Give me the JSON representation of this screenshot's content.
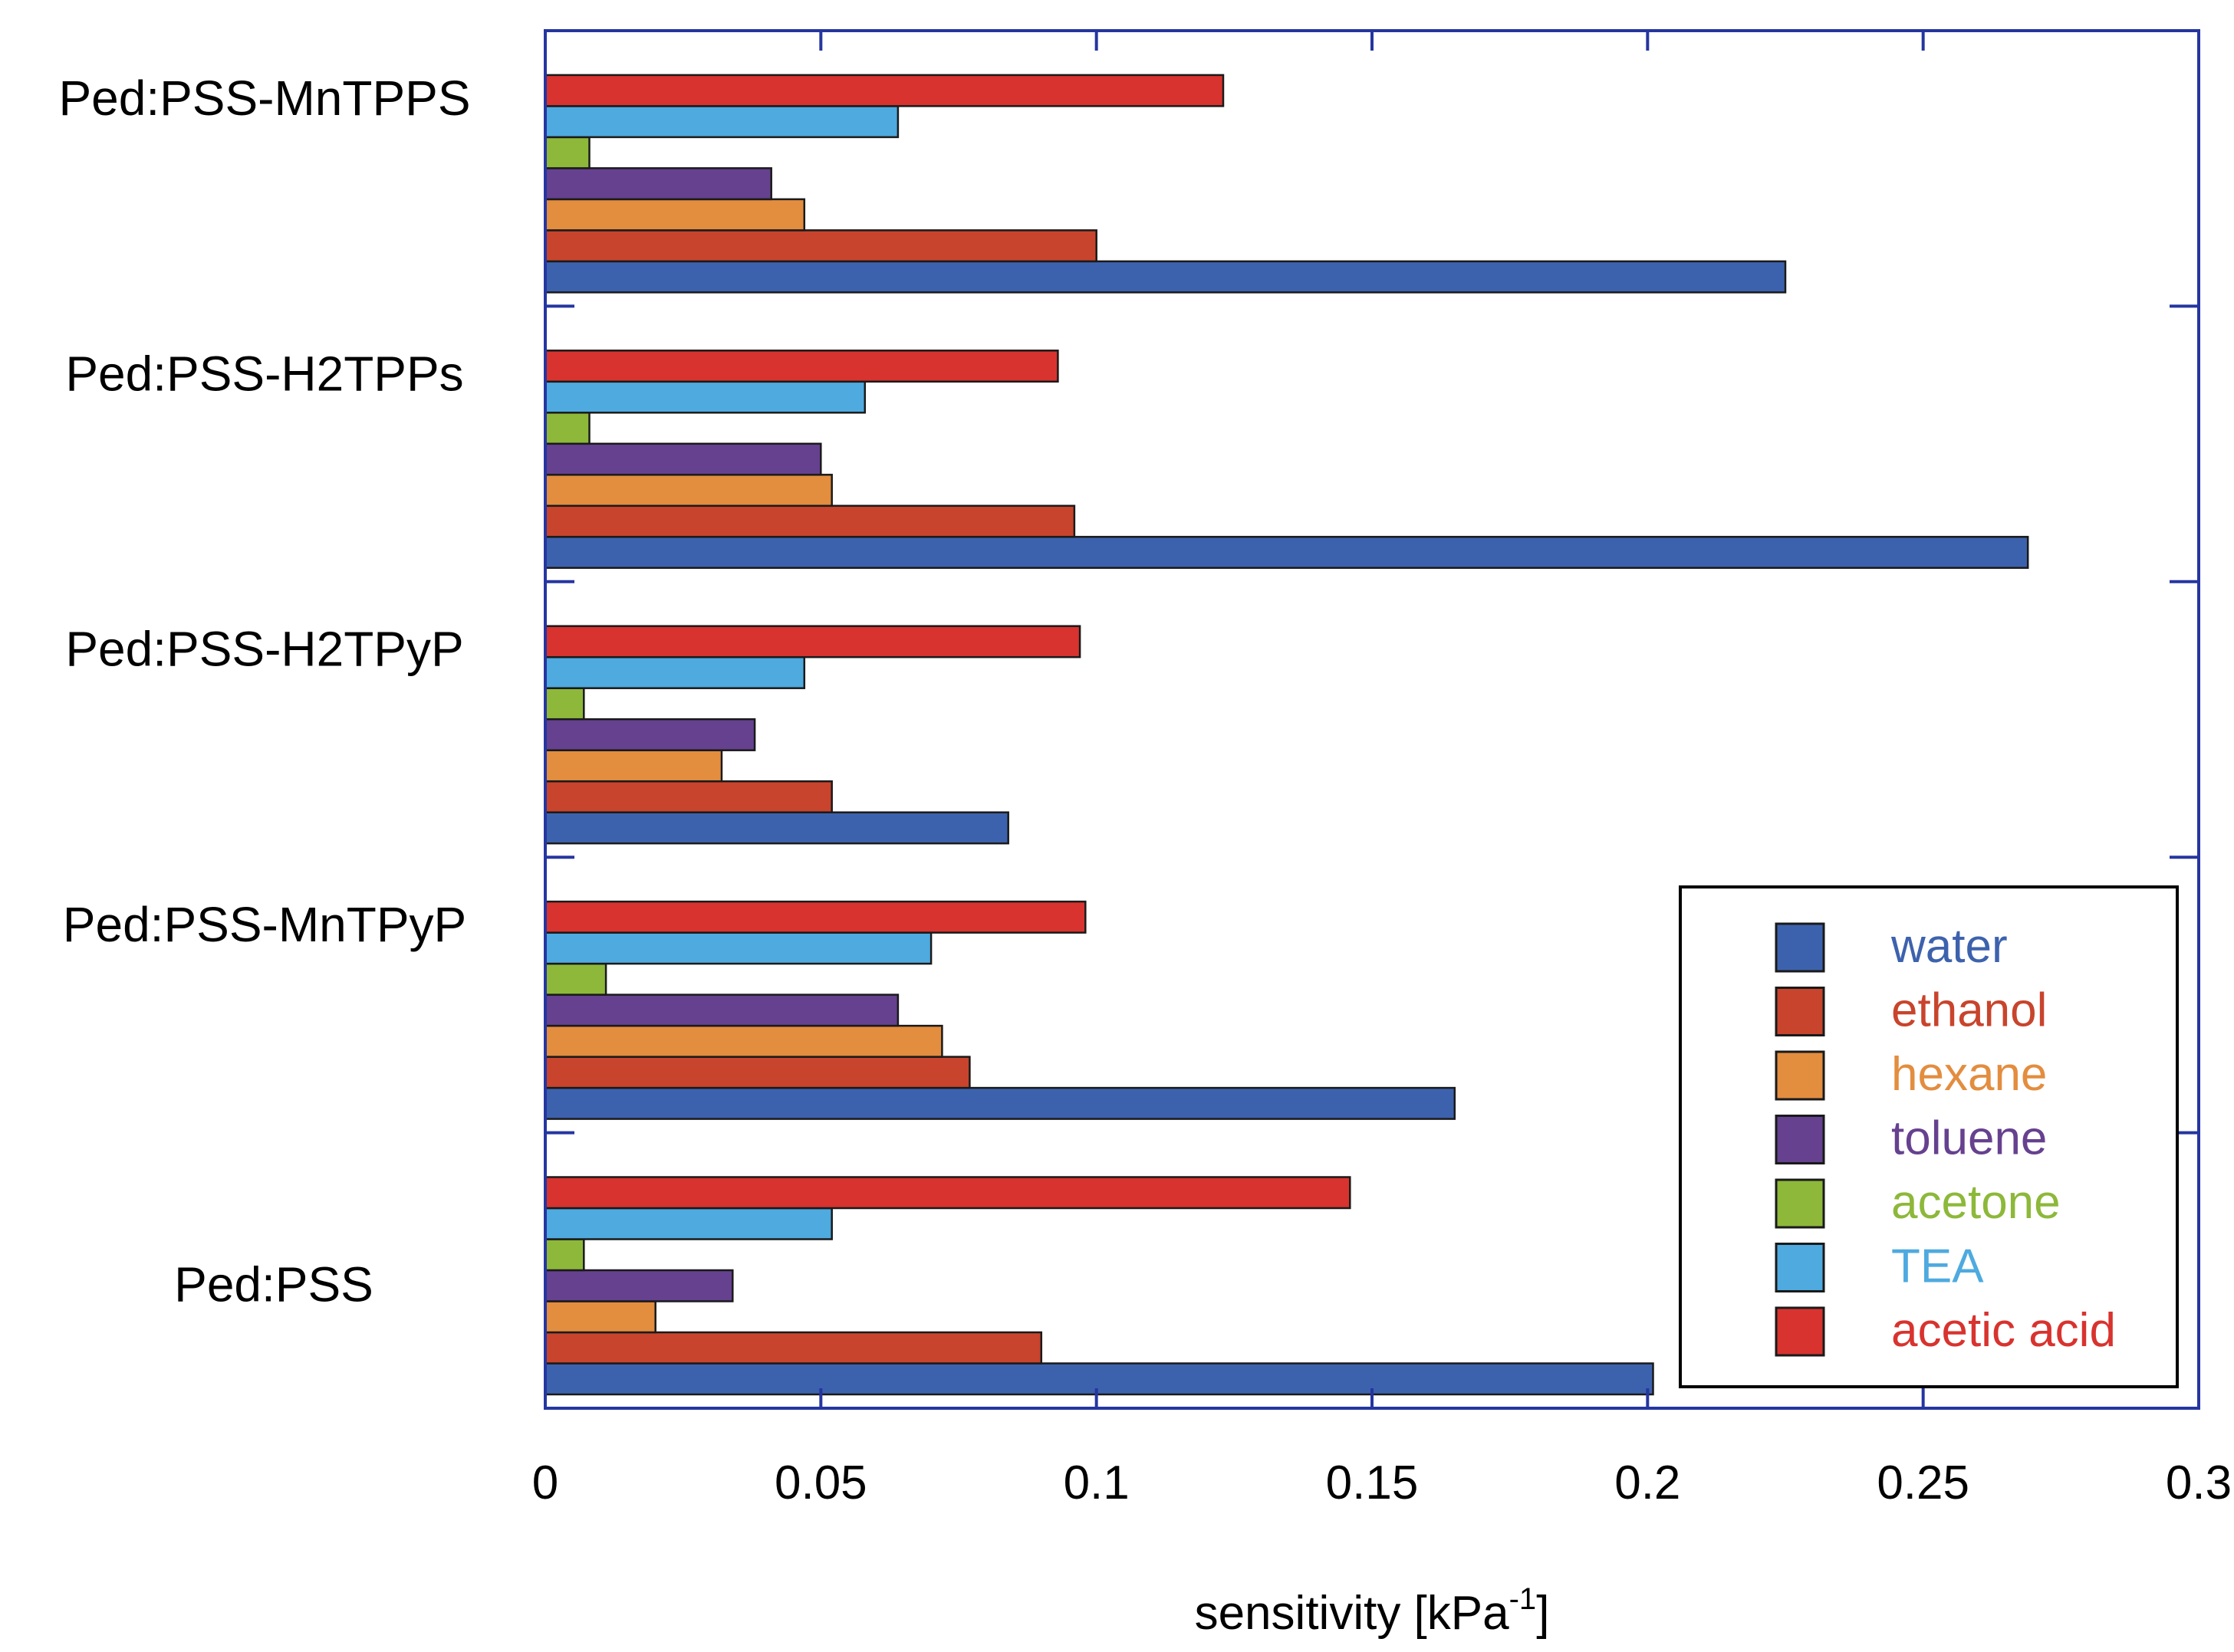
{
  "chart_data": {
    "type": "bar",
    "orientation": "horizontal",
    "title": "",
    "xlabel": "sensitivity [kPa",
    "xlabel_sup": "-1",
    "xlabel_end": "]",
    "ylabel": "",
    "xlim": [
      0,
      0.3
    ],
    "x_ticks": [
      0,
      0.05,
      0.1,
      0.15,
      0.2,
      0.25,
      0.3
    ],
    "x_tick_labels": [
      "0",
      "0.05",
      "0.1",
      "0.15",
      "0.2",
      "0.25",
      "0.3"
    ],
    "grid": false,
    "legend_position": "bottom-right",
    "categories": [
      "Ped:PSS-MnTPPS",
      "Ped:PSS-H2TPPs",
      "Ped:PSS-H2TPyP",
      "Ped:PSS-MnTPyP",
      "Ped:PSS"
    ],
    "series": [
      {
        "name": "water",
        "color": "#3d62ad",
        "values": [
          0.225,
          0.269,
          0.084,
          0.165,
          0.201
        ]
      },
      {
        "name": "ethanol",
        "color": "#c8442c",
        "values": [
          0.1,
          0.096,
          0.052,
          0.077,
          0.09
        ]
      },
      {
        "name": "hexane",
        "color": "#e38d3f",
        "values": [
          0.047,
          0.052,
          0.032,
          0.072,
          0.02
        ]
      },
      {
        "name": "toluene",
        "color": "#66418f",
        "values": [
          0.041,
          0.05,
          0.038,
          0.064,
          0.034
        ]
      },
      {
        "name": "acetone",
        "color": "#8db83a",
        "values": [
          0.008,
          0.008,
          0.007,
          0.011,
          0.007
        ]
      },
      {
        "name": "TEA",
        "color": "#4eaadf",
        "values": [
          0.064,
          0.058,
          0.047,
          0.07,
          0.052
        ]
      },
      {
        "name": "acetic acid",
        "color": "#d8332f",
        "values": [
          0.123,
          0.093,
          0.097,
          0.098,
          0.146
        ]
      }
    ],
    "colors": {
      "axis": "#2536a0",
      "legend_frame": "#000000",
      "text": "#000000"
    }
  }
}
